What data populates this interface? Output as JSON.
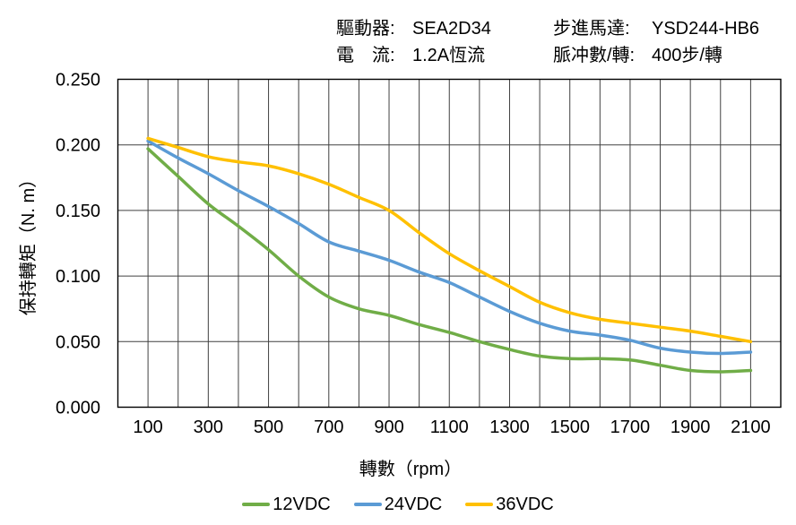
{
  "header": {
    "drive": {
      "label": "驅動器:",
      "value": "SEA2D34"
    },
    "current": {
      "label": "電　流:",
      "value": "1.2A恆流"
    },
    "motor": {
      "label": "步進馬達:",
      "value": "YSD244-HB6"
    },
    "pulses": {
      "label": "脈冲數/轉:",
      "value": "400步/轉"
    }
  },
  "chart_data": {
    "type": "line",
    "title": "",
    "xlabel": "轉數（rpm）",
    "ylabel": "保持轉矩（N. m）",
    "xlim": [
      0,
      2200
    ],
    "ylim": [
      0,
      0.25
    ],
    "x_grid_step": 100,
    "grid": true,
    "legend_position": "bottom",
    "x_ticks": [
      100,
      300,
      500,
      700,
      900,
      1100,
      1300,
      1500,
      1700,
      1900,
      2100
    ],
    "y_ticks": [
      "0.000",
      "0.050",
      "0.100",
      "0.150",
      "0.200",
      "0.250"
    ],
    "x": [
      100,
      200,
      300,
      400,
      500,
      600,
      700,
      800,
      900,
      1000,
      1100,
      1200,
      1300,
      1400,
      1500,
      1600,
      1700,
      1800,
      1900,
      2000,
      2100
    ],
    "series": [
      {
        "name": "12VDC",
        "color": "#70AD47",
        "values": [
          0.197,
          0.176,
          0.155,
          0.138,
          0.12,
          0.1,
          0.084,
          0.075,
          0.07,
          0.063,
          0.057,
          0.05,
          0.044,
          0.039,
          0.037,
          0.037,
          0.036,
          0.032,
          0.028,
          0.027,
          0.028
        ]
      },
      {
        "name": "24VDC",
        "color": "#5B9BD5",
        "values": [
          0.203,
          0.19,
          0.178,
          0.165,
          0.153,
          0.14,
          0.126,
          0.119,
          0.112,
          0.103,
          0.095,
          0.084,
          0.073,
          0.064,
          0.058,
          0.055,
          0.051,
          0.045,
          0.042,
          0.041,
          0.042
        ]
      },
      {
        "name": "36VDC",
        "color": "#FFC000",
        "values": [
          0.205,
          0.198,
          0.191,
          0.187,
          0.184,
          0.178,
          0.17,
          0.16,
          0.15,
          0.133,
          0.117,
          0.104,
          0.092,
          0.08,
          0.072,
          0.067,
          0.064,
          0.061,
          0.058,
          0.054,
          0.05
        ]
      }
    ],
    "grid_color": "#404040",
    "border_color": "#000000"
  }
}
